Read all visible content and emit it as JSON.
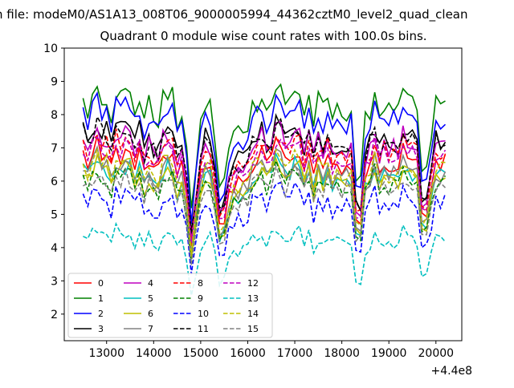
{
  "chart_data": {
    "type": "line",
    "suptitle": "n file: modeM0/AS1A13_008T06_9000005994_44362cztM0_level2_quad_clean",
    "title": "Quadrant 0 module wise count rates with 100.0s bins.",
    "xlabel": "",
    "ylabel": "",
    "x_offset_label": "+4.4e8",
    "xlim": [
      12100,
      20550
    ],
    "ylim": [
      1.2,
      10.0
    ],
    "x_ticks": [
      13000,
      14000,
      15000,
      16000,
      17000,
      18000,
      19000,
      20000
    ],
    "x_tick_labels": [
      "13000",
      "14000",
      "15000",
      "16000",
      "17000",
      "18000",
      "19000",
      "20000"
    ],
    "y_ticks": [
      2,
      3,
      4,
      5,
      6,
      7,
      8,
      9,
      10
    ],
    "y_tick_labels": [
      "2",
      "3",
      "4",
      "5",
      "6",
      "7",
      "8",
      "9",
      "10"
    ],
    "grid": false,
    "legend_position": "lower-left",
    "x_segments": [
      {
        "start": 12500,
        "end": 14700
      },
      {
        "start": 14900,
        "end": 15400
      },
      {
        "start": 15500,
        "end": 18300
      },
      {
        "start": 18400,
        "end": 19700
      },
      {
        "start": 19800,
        "end": 20200
      }
    ],
    "dip_centers": [
      14800,
      15450,
      18350,
      19750
    ],
    "series": [
      {
        "name": "0",
        "color": "#ff0000",
        "dash": "solid",
        "level": 6.5
      },
      {
        "name": "1",
        "color": "#008000",
        "dash": "solid",
        "level": 8.2
      },
      {
        "name": "2",
        "color": "#0000ff",
        "dash": "solid",
        "level": 7.8
      },
      {
        "name": "3",
        "color": "#000000",
        "dash": "solid",
        "level": 7.2
      },
      {
        "name": "4",
        "color": "#bf00bf",
        "dash": "solid",
        "level": 7.0
      },
      {
        "name": "5",
        "color": "#00bfbf",
        "dash": "solid",
        "level": 6.1
      },
      {
        "name": "6",
        "color": "#bfbf00",
        "dash": "solid",
        "level": 6.0
      },
      {
        "name": "7",
        "color": "#808080",
        "dash": "solid",
        "level": 6.2
      },
      {
        "name": "8",
        "color": "#ff0000",
        "dash": "dashed",
        "level": 6.9
      },
      {
        "name": "9",
        "color": "#008000",
        "dash": "dashed",
        "level": 5.9
      },
      {
        "name": "10",
        "color": "#0000ff",
        "dash": "dashed",
        "level": 5.3
      },
      {
        "name": "11",
        "color": "#000000",
        "dash": "dashed",
        "level": 7.1
      },
      {
        "name": "12",
        "color": "#bf00bf",
        "dash": "dashed",
        "level": 6.7
      },
      {
        "name": "13",
        "color": "#00bfbf",
        "dash": "dashed",
        "level": 4.2
      },
      {
        "name": "14",
        "color": "#bfbf00",
        "dash": "dashed",
        "level": 6.3
      },
      {
        "name": "15",
        "color": "#808080",
        "dash": "dashed",
        "level": 5.8
      }
    ]
  }
}
